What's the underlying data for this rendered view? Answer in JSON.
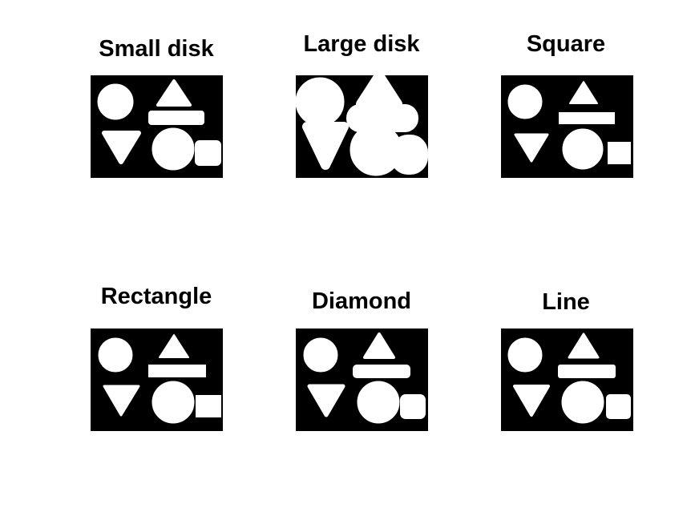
{
  "colors": {
    "background": "#000000",
    "foreground": "#ffffff",
    "page": "#ffffff",
    "title": "#000000"
  },
  "panels": [
    {
      "title": "Small disk",
      "structuring_element": "disk-small"
    },
    {
      "title": "Large disk",
      "structuring_element": "disk-large"
    },
    {
      "title": "Square",
      "structuring_element": "square"
    },
    {
      "title": "Rectangle",
      "structuring_element": "rectangle"
    },
    {
      "title": "Diamond",
      "structuring_element": "diamond"
    },
    {
      "title": "Line",
      "structuring_element": "line"
    }
  ]
}
